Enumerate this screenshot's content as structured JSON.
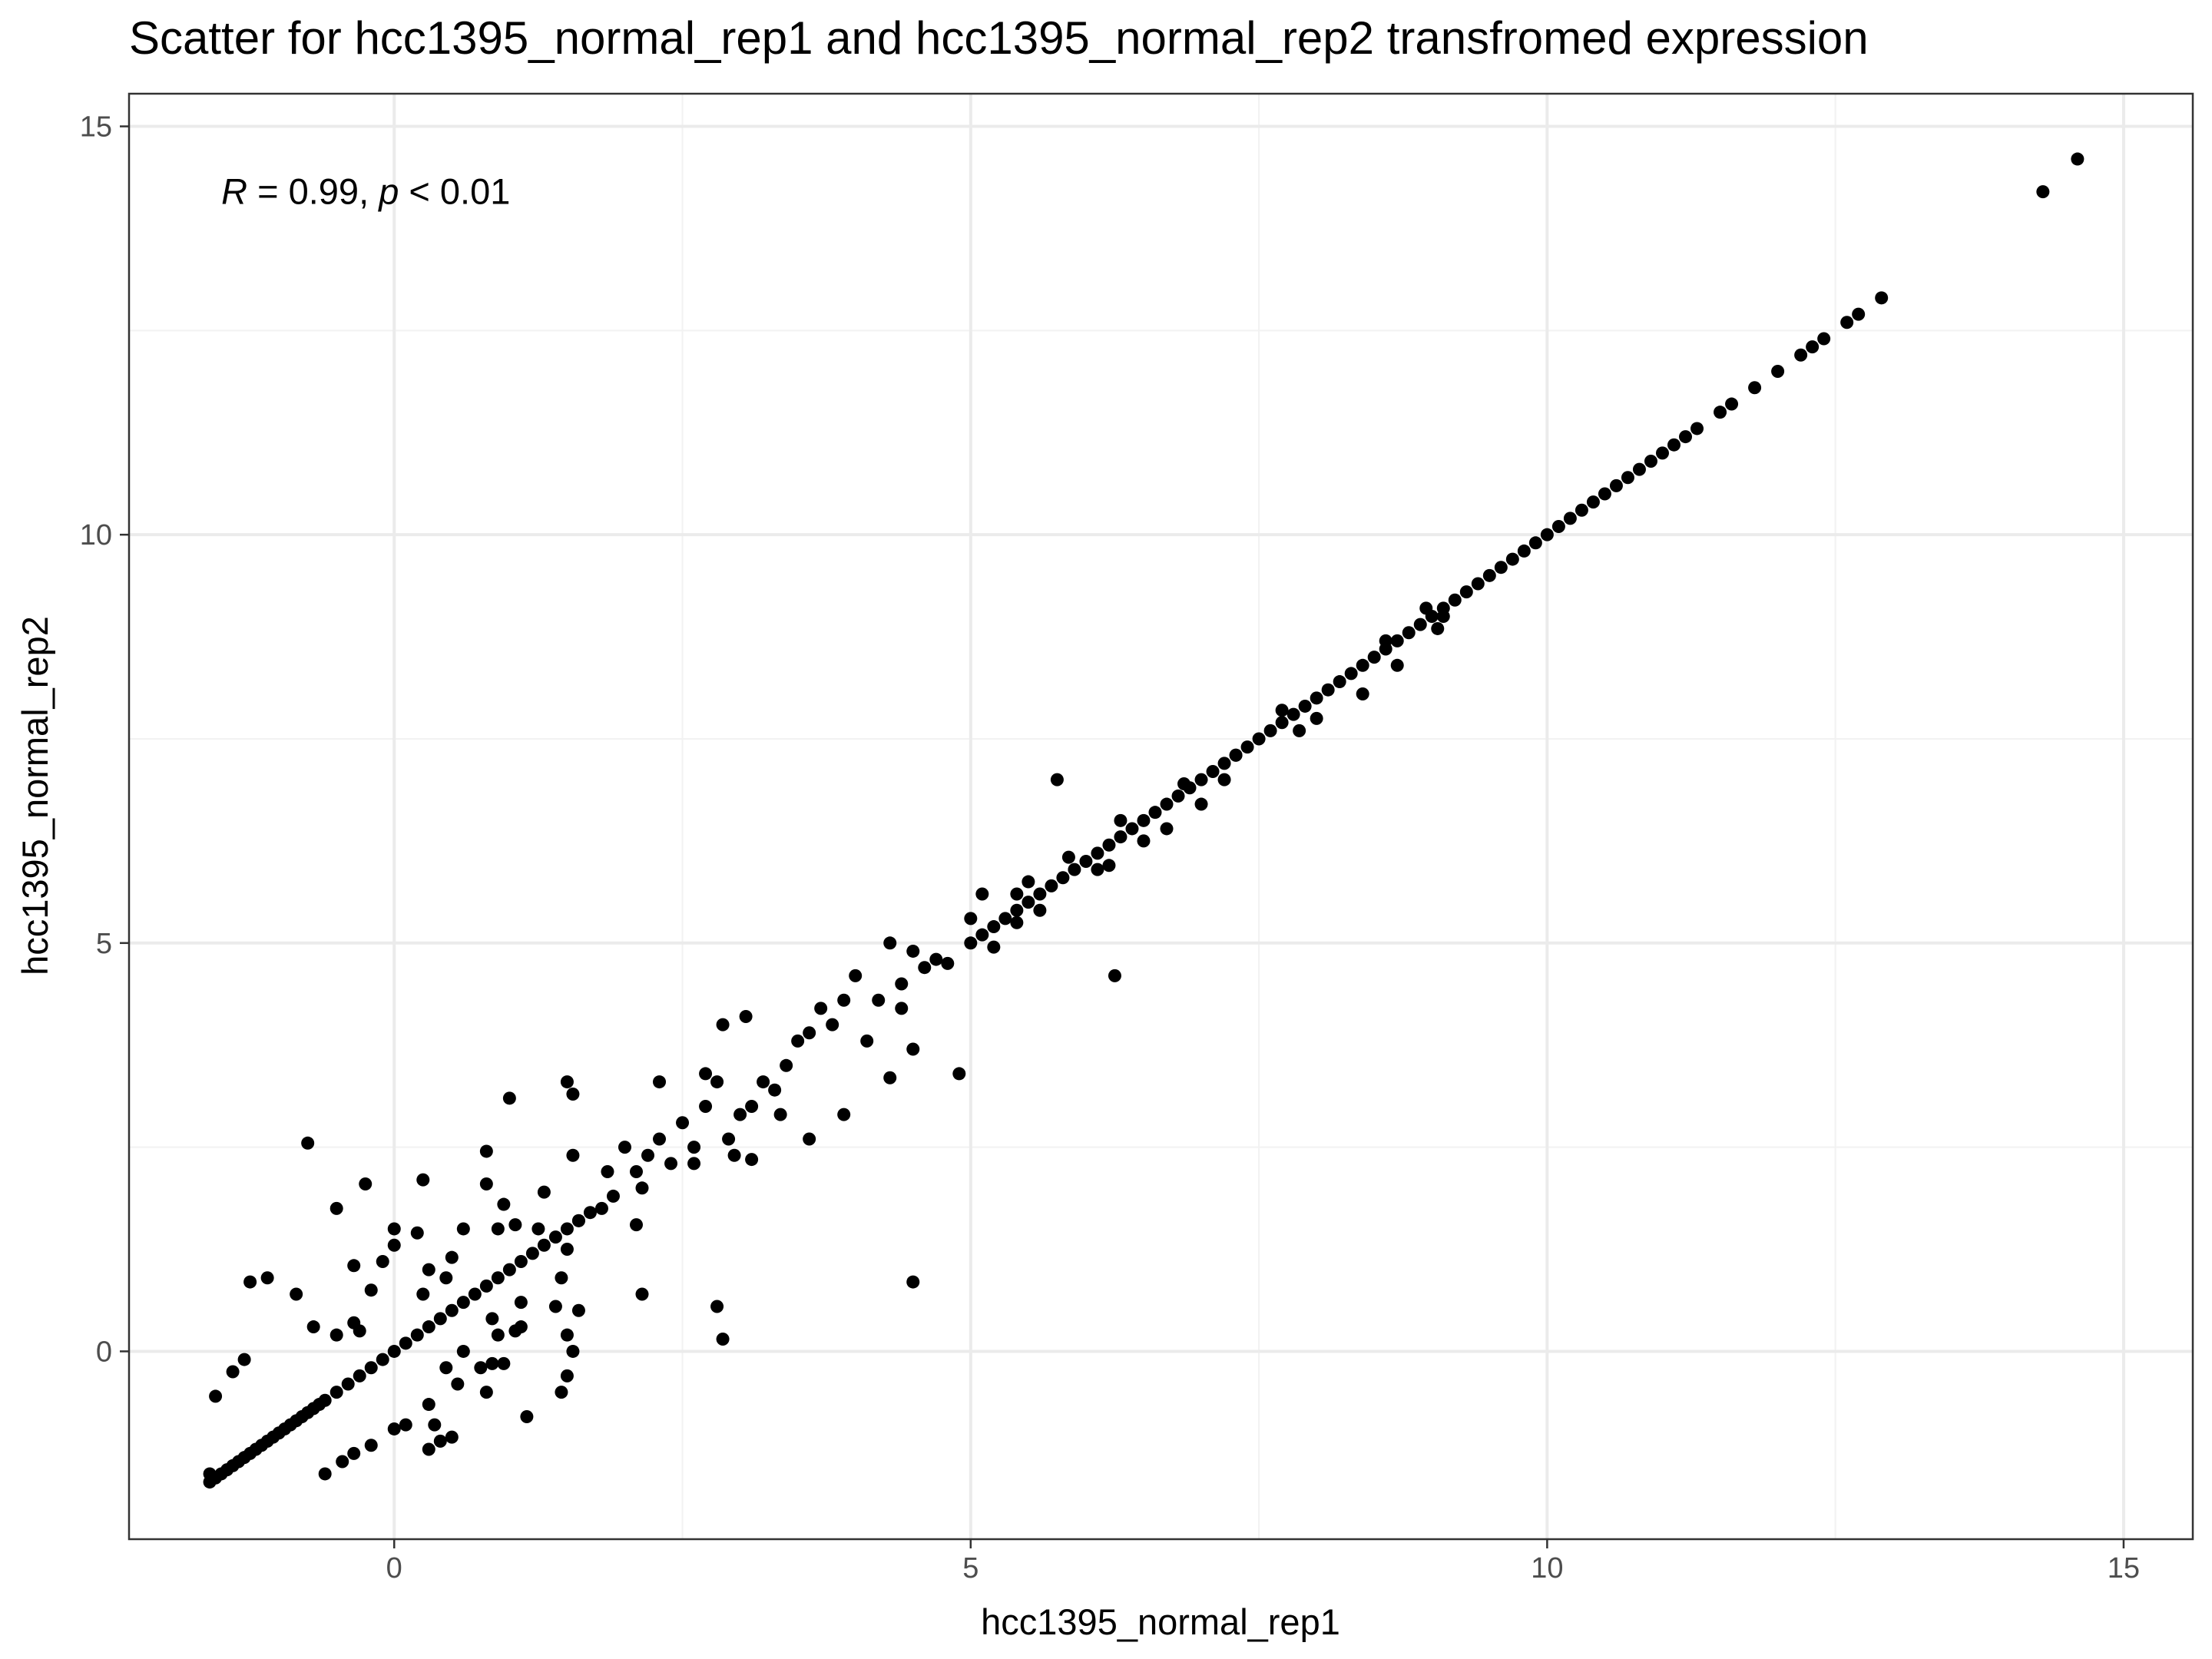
{
  "chart_data": {
    "type": "scatter",
    "title": "Scatter for hcc1395_normal_rep1 and hcc1395_normal_rep2 transfromed expression",
    "xlabel": "hcc1395_normal_rep1",
    "ylabel": "hcc1395_normal_rep2",
    "xlim": [
      -2.3,
      15.6
    ],
    "ylim": [
      -2.3,
      15.4
    ],
    "x_ticks": [
      0,
      5,
      10,
      15
    ],
    "y_ticks": [
      0,
      5,
      10,
      15
    ],
    "grid": true,
    "point_color": "#000000",
    "annotation": {
      "r_symbol": "R",
      "r_text": " = 0.99, ",
      "p_symbol": "p",
      "p_text": " < 0.01",
      "x": -1.5,
      "y": 14.2
    },
    "series": [
      {
        "points": [
          [
            14.3,
            14.2
          ],
          [
            14.6,
            14.6
          ],
          [
            12.9,
            12.9
          ],
          [
            12.7,
            12.7
          ],
          [
            12.6,
            12.6
          ],
          [
            12.4,
            12.4
          ],
          [
            12.3,
            12.3
          ],
          [
            12.2,
            12.2
          ],
          [
            12.0,
            12.0
          ],
          [
            11.8,
            11.8
          ],
          [
            11.6,
            11.6
          ],
          [
            11.5,
            11.5
          ],
          [
            11.3,
            11.3
          ],
          [
            11.2,
            11.2
          ],
          [
            11.1,
            11.1
          ],
          [
            11.0,
            11.0
          ],
          [
            10.9,
            10.9
          ],
          [
            10.8,
            10.8
          ],
          [
            10.7,
            10.7
          ],
          [
            10.6,
            10.6
          ],
          [
            10.5,
            10.5
          ],
          [
            10.4,
            10.4
          ],
          [
            10.3,
            10.3
          ],
          [
            10.2,
            10.2
          ],
          [
            10.1,
            10.1
          ],
          [
            10.0,
            10.0
          ],
          [
            9.9,
            9.9
          ],
          [
            9.8,
            9.8
          ],
          [
            9.7,
            9.7
          ],
          [
            9.6,
            9.6
          ],
          [
            9.5,
            9.5
          ],
          [
            9.4,
            9.4
          ],
          [
            9.3,
            9.3
          ],
          [
            9.2,
            9.2
          ],
          [
            9.1,
            9.1
          ],
          [
            9.0,
            9.0
          ],
          [
            8.9,
            8.9
          ],
          [
            8.8,
            8.8
          ],
          [
            8.7,
            8.7
          ],
          [
            8.6,
            8.6
          ],
          [
            8.5,
            8.5
          ],
          [
            8.4,
            8.4
          ],
          [
            8.3,
            8.3
          ],
          [
            8.2,
            8.2
          ],
          [
            8.1,
            8.1
          ],
          [
            8.0,
            8.0
          ],
          [
            7.9,
            7.9
          ],
          [
            7.8,
            7.8
          ],
          [
            7.7,
            7.7
          ],
          [
            7.6,
            7.6
          ],
          [
            7.5,
            7.5
          ],
          [
            7.4,
            7.4
          ],
          [
            7.3,
            7.3
          ],
          [
            7.2,
            7.2
          ],
          [
            7.1,
            7.1
          ],
          [
            7.0,
            7.0
          ],
          [
            6.9,
            6.9
          ],
          [
            6.8,
            6.8
          ],
          [
            6.7,
            6.7
          ],
          [
            6.6,
            6.6
          ],
          [
            6.5,
            6.5
          ],
          [
            6.4,
            6.4
          ],
          [
            6.3,
            6.3
          ],
          [
            6.2,
            6.2
          ],
          [
            6.1,
            6.1
          ],
          [
            6.0,
            6.0
          ],
          [
            5.9,
            5.9
          ],
          [
            5.8,
            5.8
          ],
          [
            5.7,
            5.7
          ],
          [
            5.6,
            5.6
          ],
          [
            5.5,
            5.5
          ],
          [
            5.4,
            5.4
          ],
          [
            5.3,
            5.3
          ],
          [
            5.2,
            5.2
          ],
          [
            5.1,
            5.1
          ],
          [
            5.0,
            5.0
          ],
          [
            9.05,
            8.85
          ],
          [
            8.7,
            8.4
          ],
          [
            8.4,
            8.05
          ],
          [
            8.0,
            7.75
          ],
          [
            7.85,
            7.6
          ],
          [
            7.2,
            7.0
          ],
          [
            7.0,
            6.7
          ],
          [
            6.7,
            6.4
          ],
          [
            6.5,
            6.25
          ],
          [
            6.2,
            5.95
          ],
          [
            6.1,
            5.9
          ],
          [
            5.6,
            5.4
          ],
          [
            5.4,
            5.25
          ],
          [
            9.1,
            9.0
          ],
          [
            8.95,
            9.1
          ],
          [
            8.6,
            8.7
          ],
          [
            7.7,
            7.85
          ],
          [
            7.3,
            7.3
          ],
          [
            6.85,
            6.95
          ],
          [
            6.3,
            6.5
          ],
          [
            5.85,
            6.05
          ],
          [
            5.5,
            5.75
          ],
          [
            5.75,
            7.0
          ],
          [
            6.25,
            4.6
          ],
          [
            5.4,
            5.6
          ],
          [
            5.1,
            5.6
          ],
          [
            5.0,
            5.3
          ],
          [
            5.2,
            4.95
          ],
          [
            4.8,
            4.75
          ],
          [
            4.5,
            4.9
          ],
          [
            4.3,
            5.0
          ],
          [
            4.6,
            4.7
          ],
          [
            4.7,
            4.8
          ],
          [
            4.4,
            4.5
          ],
          [
            4.2,
            4.3
          ],
          [
            4.0,
            4.6
          ],
          [
            3.9,
            4.3
          ],
          [
            3.8,
            4.0
          ],
          [
            3.7,
            4.2
          ],
          [
            3.6,
            3.9
          ],
          [
            3.5,
            3.8
          ],
          [
            3.4,
            3.5
          ],
          [
            3.3,
            3.2
          ],
          [
            3.2,
            3.3
          ],
          [
            3.1,
            3.0
          ],
          [
            3.0,
            2.9
          ],
          [
            2.9,
            2.6
          ],
          [
            2.8,
            3.3
          ],
          [
            2.7,
            3.4
          ],
          [
            2.6,
            2.5
          ],
          [
            2.5,
            2.8
          ],
          [
            2.4,
            2.3
          ],
          [
            2.3,
            2.6
          ],
          [
            2.2,
            2.4
          ],
          [
            2.1,
            2.2
          ],
          [
            2.0,
            2.5
          ],
          [
            1.9,
            1.9
          ],
          [
            1.8,
            1.75
          ],
          [
            1.7,
            1.7
          ],
          [
            1.6,
            1.6
          ],
          [
            1.5,
            1.5
          ],
          [
            1.4,
            1.4
          ],
          [
            1.3,
            1.3
          ],
          [
            1.2,
            1.2
          ],
          [
            1.1,
            1.1
          ],
          [
            1.0,
            1.0
          ],
          [
            0.9,
            0.9
          ],
          [
            0.8,
            0.8
          ],
          [
            0.7,
            0.7
          ],
          [
            0.6,
            0.6
          ],
          [
            0.5,
            0.5
          ],
          [
            0.4,
            0.4
          ],
          [
            0.3,
            0.3
          ],
          [
            0.2,
            0.2
          ],
          [
            0.1,
            0.1
          ],
          [
            0.0,
            0.0
          ],
          [
            -0.1,
            -0.1
          ],
          [
            -0.2,
            -0.2
          ],
          [
            -0.3,
            -0.3
          ],
          [
            -0.4,
            -0.4
          ],
          [
            -0.5,
            -0.5
          ],
          [
            -0.6,
            -0.6
          ],
          [
            -0.7,
            -0.7
          ],
          [
            -0.8,
            -0.8
          ],
          [
            -0.9,
            -0.9
          ],
          [
            -1.0,
            -1.0
          ],
          [
            -1.1,
            -1.1
          ],
          [
            -1.2,
            -1.2
          ],
          [
            -1.3,
            -1.3
          ],
          [
            -1.4,
            -1.4
          ],
          [
            -1.5,
            -1.5
          ],
          [
            -1.6,
            -1.6
          ],
          [
            -1.55,
            -1.55
          ],
          [
            -1.45,
            -1.45
          ],
          [
            -1.35,
            -1.35
          ],
          [
            -1.25,
            -1.25
          ],
          [
            -1.15,
            -1.15
          ],
          [
            -1.05,
            -1.05
          ],
          [
            -0.95,
            -0.95
          ],
          [
            -0.85,
            -0.85
          ],
          [
            -0.75,
            -0.75
          ],
          [
            -0.65,
            -0.65
          ],
          [
            4.9,
            3.4
          ],
          [
            4.5,
            0.85
          ],
          [
            4.4,
            4.2
          ],
          [
            4.5,
            3.7
          ],
          [
            4.1,
            3.8
          ],
          [
            4.3,
            3.35
          ],
          [
            3.9,
            2.9
          ],
          [
            3.6,
            2.6
          ],
          [
            3.35,
            2.9
          ],
          [
            3.1,
            2.35
          ],
          [
            2.95,
            2.4
          ],
          [
            2.85,
            4.0
          ],
          [
            3.05,
            4.1
          ],
          [
            2.7,
            3.0
          ],
          [
            2.6,
            2.3
          ],
          [
            2.8,
            0.55
          ],
          [
            2.85,
            0.15
          ],
          [
            2.3,
            3.3
          ],
          [
            2.15,
            2.0
          ],
          [
            2.1,
            1.55
          ],
          [
            2.15,
            0.7
          ],
          [
            1.5,
            3.3
          ],
          [
            1.55,
            3.15
          ],
          [
            1.85,
            2.2
          ],
          [
            1.6,
            1.6
          ],
          [
            1.5,
            1.25
          ],
          [
            1.45,
            0.9
          ],
          [
            1.55,
            2.4
          ],
          [
            1.3,
            1.95
          ],
          [
            1.25,
            1.5
          ],
          [
            1.4,
            0.55
          ],
          [
            1.5,
            0.2
          ],
          [
            1.55,
            0.0
          ],
          [
            1.45,
            -0.5
          ],
          [
            1.5,
            -0.3
          ],
          [
            1.15,
            -0.8
          ],
          [
            1.1,
            0.3
          ],
          [
            1.1,
            0.6
          ],
          [
            1.0,
            3.1
          ],
          [
            0.8,
            2.45
          ],
          [
            0.8,
            2.05
          ],
          [
            0.9,
            1.5
          ],
          [
            0.95,
            1.8
          ],
          [
            0.85,
            0.4
          ],
          [
            0.9,
            0.2
          ],
          [
            0.85,
            -0.15
          ],
          [
            0.6,
            0.0
          ],
          [
            0.55,
            -0.4
          ],
          [
            0.45,
            -0.2
          ],
          [
            0.35,
            -0.9
          ],
          [
            0.3,
            -0.65
          ],
          [
            0.4,
            -1.1
          ],
          [
            0.25,
            2.1
          ],
          [
            0.3,
            1.0
          ],
          [
            0.0,
            1.5
          ],
          [
            0.0,
            1.3
          ],
          [
            -0.1,
            1.1
          ],
          [
            -0.2,
            0.75
          ],
          [
            -0.3,
            0.25
          ],
          [
            -0.35,
            0.35
          ],
          [
            -0.5,
            0.2
          ],
          [
            -0.7,
            0.3
          ],
          [
            -0.75,
            2.55
          ],
          [
            -0.5,
            1.75
          ],
          [
            -0.25,
            2.05
          ],
          [
            -0.35,
            1.05
          ],
          [
            -0.85,
            0.7
          ],
          [
            -1.1,
            0.9
          ],
          [
            -1.25,
            0.85
          ],
          [
            -1.3,
            -0.1
          ],
          [
            -1.4,
            -0.25
          ],
          [
            -1.55,
            -0.55
          ],
          [
            -1.6,
            -1.5
          ],
          [
            -0.6,
            -1.5
          ],
          [
            -0.45,
            -1.35
          ],
          [
            -0.35,
            -1.25
          ],
          [
            -0.2,
            -1.15
          ],
          [
            0.0,
            -0.95
          ],
          [
            0.1,
            -0.9
          ],
          [
            0.3,
            -1.2
          ],
          [
            0.5,
            -1.05
          ],
          [
            0.8,
            -0.5
          ],
          [
            0.75,
            -0.2
          ],
          [
            0.95,
            -0.15
          ],
          [
            1.05,
            0.25
          ],
          [
            0.5,
            1.15
          ],
          [
            0.45,
            0.9
          ],
          [
            0.2,
            1.45
          ],
          [
            0.25,
            0.7
          ],
          [
            0.6,
            1.5
          ],
          [
            1.05,
            1.55
          ],
          [
            1.6,
            0.5
          ]
        ]
      }
    ]
  }
}
